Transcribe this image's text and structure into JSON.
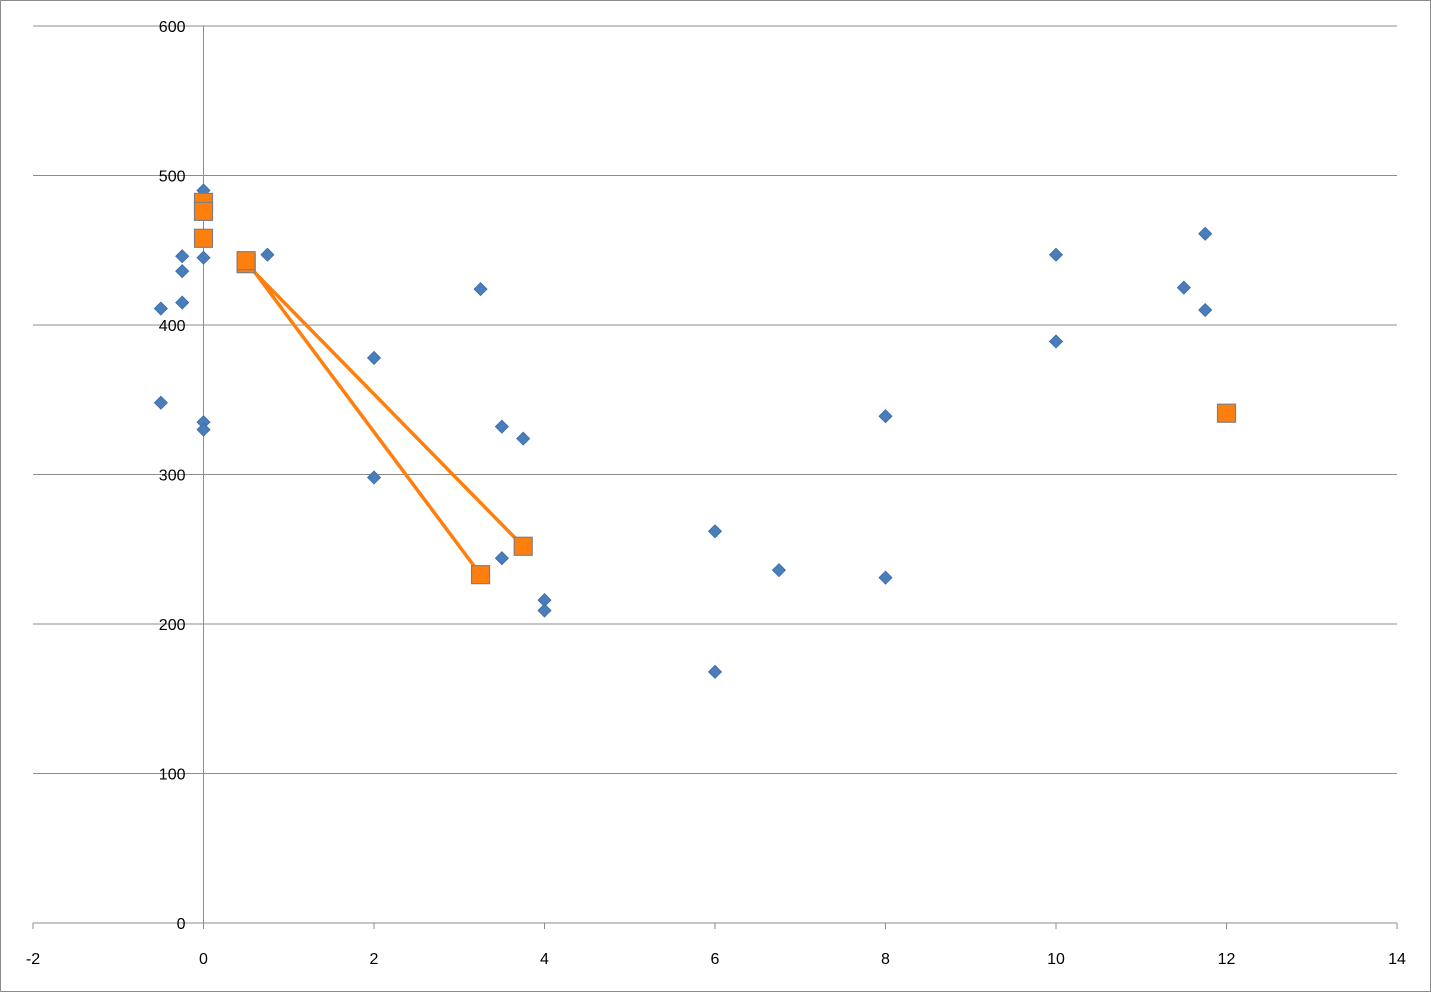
{
  "chart_data": {
    "type": "scatter",
    "title": "",
    "xlabel": "",
    "ylabel": "",
    "xlim": [
      -2,
      14
    ],
    "ylim": [
      0,
      600
    ],
    "x_ticks": [
      -2,
      0,
      2,
      4,
      6,
      8,
      10,
      12,
      14
    ],
    "x_tick_labels": [
      "-2",
      "0",
      "2",
      "4",
      "6",
      "8",
      "10",
      "12",
      "14"
    ],
    "y_ticks": [
      0,
      100,
      200,
      300,
      400,
      500,
      600
    ],
    "y_tick_labels": [
      "0",
      "100",
      "200",
      "300",
      "400",
      "500",
      "600"
    ],
    "grid": "horizontal major gridlines",
    "legend": "none",
    "series": [
      {
        "marker": "diamond",
        "color": "#4a7ebb",
        "connected": false,
        "points": [
          [
            -0.5,
            411
          ],
          [
            -0.5,
            348
          ],
          [
            -0.25,
            446
          ],
          [
            -0.25,
            436
          ],
          [
            -0.25,
            415
          ],
          [
            0,
            490
          ],
          [
            0,
            484
          ],
          [
            0,
            445
          ],
          [
            0,
            335
          ],
          [
            0,
            330
          ],
          [
            0.75,
            447
          ],
          [
            2,
            378
          ],
          [
            2,
            298
          ],
          [
            3.25,
            424
          ],
          [
            3.5,
            332
          ],
          [
            3.5,
            244
          ],
          [
            3.75,
            324
          ],
          [
            4,
            216
          ],
          [
            4,
            209
          ],
          [
            6,
            262
          ],
          [
            6,
            168
          ],
          [
            6.75,
            236
          ],
          [
            8,
            339
          ],
          [
            8,
            231
          ],
          [
            10,
            447
          ],
          [
            10,
            389
          ],
          [
            11.5,
            425
          ],
          [
            11.75,
            461
          ],
          [
            11.75,
            410
          ]
        ]
      },
      {
        "marker": "square",
        "color": "#ff7f0e",
        "connected": false,
        "points": [
          [
            0,
            482
          ],
          [
            0,
            476
          ],
          [
            0,
            458
          ],
          [
            12,
            341
          ]
        ]
      },
      {
        "marker": "square",
        "color": "#ff7f0e",
        "connected": true,
        "points": [
          [
            0.5,
            441
          ],
          [
            3.75,
            252
          ]
        ]
      },
      {
        "marker": "square",
        "color": "#ff7f0e",
        "connected": true,
        "points": [
          [
            0.5,
            443
          ],
          [
            3.25,
            233
          ]
        ]
      }
    ]
  },
  "colors": {
    "gridline": "#8c8c8c",
    "axis": "#8c8c8c",
    "marker_outline": "#7f7f7f"
  }
}
